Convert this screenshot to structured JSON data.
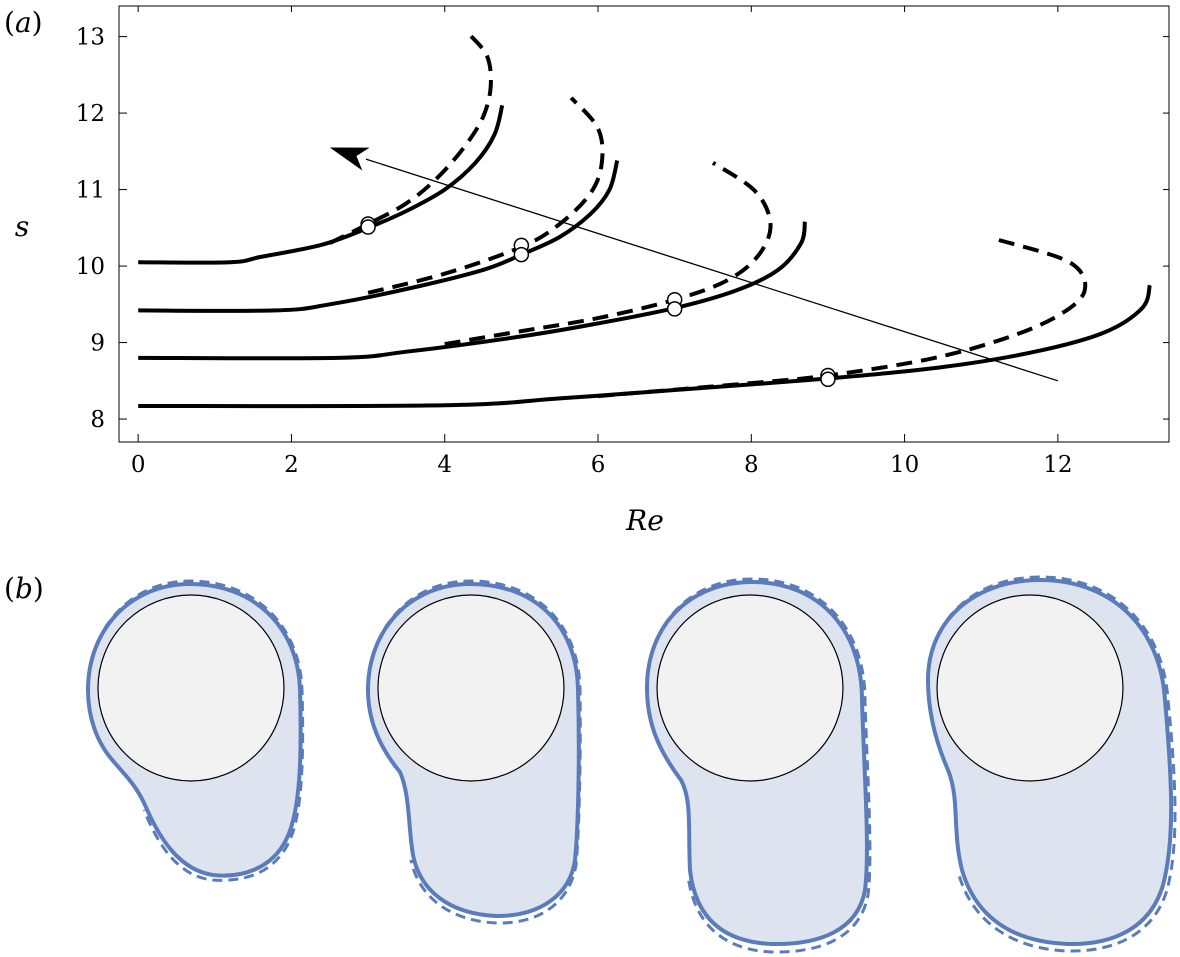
{
  "panel_a_label": "(a)",
  "panel_b_label": "(b)",
  "chart_data": {
    "type": "line",
    "title": "",
    "xlabel": "Re",
    "ylabel": "s",
    "xlim": [
      -0.25,
      13.45
    ],
    "ylim": [
      7.7,
      13.4
    ],
    "xticks": [
      0,
      2,
      4,
      6,
      8,
      10,
      12
    ],
    "yticks": [
      8,
      9,
      10,
      11,
      12,
      13
    ],
    "grid": false,
    "arrow": {
      "from": [
        12.0,
        8.5
      ],
      "to": [
        2.5,
        11.55
      ]
    },
    "series": [
      {
        "style": "solid",
        "points": [
          [
            0,
            10.05
          ],
          [
            1.2,
            10.05
          ],
          [
            1.6,
            10.12
          ],
          [
            2.4,
            10.28
          ],
          [
            3.0,
            10.5
          ],
          [
            3.5,
            10.72
          ],
          [
            4.0,
            11.0
          ],
          [
            4.4,
            11.35
          ],
          [
            4.65,
            11.72
          ],
          [
            4.75,
            12.1
          ]
        ]
      },
      {
        "style": "dashed",
        "points": [
          [
            2.5,
            10.3
          ],
          [
            3.0,
            10.55
          ],
          [
            3.5,
            10.82
          ],
          [
            3.9,
            11.15
          ],
          [
            4.25,
            11.55
          ],
          [
            4.5,
            11.95
          ],
          [
            4.6,
            12.35
          ],
          [
            4.55,
            12.75
          ],
          [
            4.3,
            13.05
          ]
        ]
      },
      {
        "style": "solid",
        "points": [
          [
            0,
            9.42
          ],
          [
            1.8,
            9.42
          ],
          [
            2.5,
            9.5
          ],
          [
            3.5,
            9.7
          ],
          [
            4.5,
            9.95
          ],
          [
            5.0,
            10.15
          ],
          [
            5.5,
            10.38
          ],
          [
            5.9,
            10.68
          ],
          [
            6.15,
            11.0
          ],
          [
            6.25,
            11.38
          ]
        ]
      },
      {
        "style": "dashed",
        "points": [
          [
            3.0,
            9.65
          ],
          [
            4.0,
            9.9
          ],
          [
            5.0,
            10.25
          ],
          [
            5.5,
            10.55
          ],
          [
            5.9,
            10.95
          ],
          [
            6.05,
            11.35
          ],
          [
            6.0,
            11.8
          ],
          [
            5.65,
            12.2
          ]
        ]
      },
      {
        "style": "solid",
        "points": [
          [
            0,
            8.8
          ],
          [
            2.6,
            8.8
          ],
          [
            3.5,
            8.88
          ],
          [
            5.0,
            9.08
          ],
          [
            6.0,
            9.25
          ],
          [
            7.0,
            9.45
          ],
          [
            7.8,
            9.68
          ],
          [
            8.35,
            9.95
          ],
          [
            8.65,
            10.3
          ],
          [
            8.7,
            10.58
          ]
        ]
      },
      {
        "style": "dashed",
        "points": [
          [
            4.0,
            8.98
          ],
          [
            5.0,
            9.15
          ],
          [
            6.0,
            9.32
          ],
          [
            7.0,
            9.56
          ],
          [
            7.7,
            9.82
          ],
          [
            8.1,
            10.15
          ],
          [
            8.25,
            10.55
          ],
          [
            8.05,
            10.98
          ],
          [
            7.5,
            11.35
          ]
        ]
      },
      {
        "style": "solid",
        "points": [
          [
            0,
            8.17
          ],
          [
            4.0,
            8.18
          ],
          [
            5.5,
            8.27
          ],
          [
            7.0,
            8.38
          ],
          [
            9.0,
            8.53
          ],
          [
            10.5,
            8.68
          ],
          [
            11.7,
            8.88
          ],
          [
            12.6,
            9.13
          ],
          [
            13.1,
            9.45
          ],
          [
            13.2,
            9.75
          ]
        ]
      },
      {
        "style": "dashed",
        "points": [
          [
            6.0,
            8.3
          ],
          [
            8.0,
            8.47
          ],
          [
            9.0,
            8.57
          ],
          [
            10.3,
            8.78
          ],
          [
            11.3,
            9.05
          ],
          [
            12.0,
            9.35
          ],
          [
            12.35,
            9.68
          ],
          [
            12.15,
            10.05
          ],
          [
            11.2,
            10.35
          ]
        ]
      }
    ],
    "markers": [
      {
        "x": 3,
        "y": 10.55
      },
      {
        "x": 3,
        "y": 10.51
      },
      {
        "x": 5,
        "y": 10.27
      },
      {
        "x": 5,
        "y": 10.15
      },
      {
        "x": 7,
        "y": 9.56
      },
      {
        "x": 7,
        "y": 9.44
      },
      {
        "x": 9,
        "y": 8.57
      },
      {
        "x": 9,
        "y": 8.52
      }
    ]
  },
  "panel_b": {
    "colors": {
      "outline": "#5b7cbb",
      "fill": "#dde4f0",
      "cylinder": "#f2f2f2",
      "cylinder_stroke": "#000000"
    },
    "shapes": 4
  }
}
